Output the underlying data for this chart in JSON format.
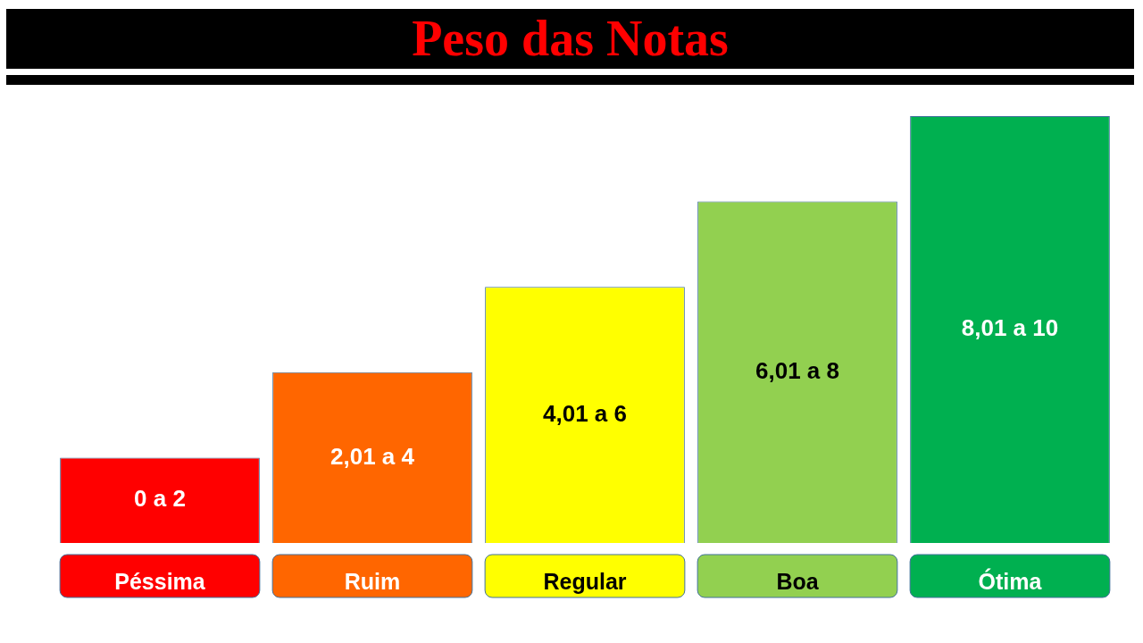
{
  "chart_data": {
    "type": "bar",
    "title": "Peso das Notas",
    "categories": [
      "Péssima",
      "Ruim",
      "Regular",
      "Boa",
      "Ótima"
    ],
    "values": [
      2,
      4,
      6,
      8,
      10
    ],
    "colors": [
      "#ff0000",
      "#ff6600",
      "#ffff00",
      "#92d050",
      "#00b050"
    ],
    "value_labels": [
      "0 a 2",
      "2,01 a 4",
      "4,01 a 6",
      "6,01 a 8",
      "8,01 a 10"
    ],
    "tick_labels": "x",
    "legend": false,
    "grid": false
  }
}
